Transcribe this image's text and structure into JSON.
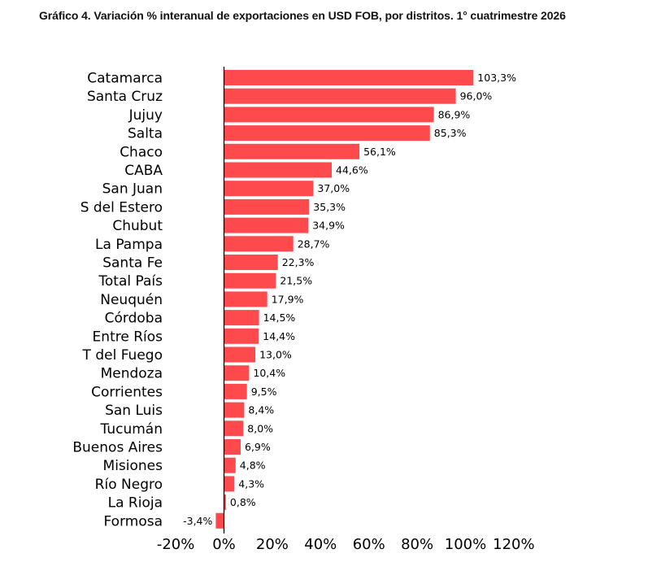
{
  "chart_data": {
    "type": "bar",
    "orientation": "horizontal",
    "title": "Gráfico 4. Variación % interanual de exportaciones en USD FOB, por distritos. 1° cuatrimestre 2026",
    "categories": [
      "Catamarca",
      "Santa Cruz",
      "Jujuy",
      "Salta",
      "Chaco",
      "CABA",
      "San Juan",
      "S del Estero",
      "Chubut",
      "La Pampa",
      "Santa Fe",
      "Total País",
      "Neuquén",
      "Córdoba",
      "Entre Ríos",
      "T del Fuego",
      "Mendoza",
      "Corrientes",
      "San Luis",
      "Tucumán",
      "Buenos Aires",
      "Misiones",
      "Río Negro",
      "La Rioja",
      "Formosa"
    ],
    "values": [
      103.3,
      96.0,
      86.9,
      85.3,
      56.1,
      44.6,
      37.0,
      35.3,
      34.9,
      28.7,
      22.3,
      21.5,
      17.9,
      14.5,
      14.4,
      13.0,
      10.4,
      9.5,
      8.4,
      8.0,
      6.9,
      4.8,
      4.3,
      0.8,
      -3.4
    ],
    "value_labels": [
      "103,3%",
      "96,0%",
      "86,9%",
      "85,3%",
      "56,1%",
      "44,6%",
      "37,0%",
      "35,3%",
      "34,9%",
      "28,7%",
      "22,3%",
      "21,5%",
      "17,9%",
      "14,5%",
      "14,4%",
      "13,0%",
      "10,4%",
      "9,5%",
      "8,4%",
      "8,0%",
      "6,9%",
      "4,8%",
      "4,3%",
      "0,8%",
      "-3,4%"
    ],
    "x_ticks": [
      -20,
      0,
      20,
      40,
      60,
      80,
      100,
      120
    ],
    "x_tick_labels": [
      "-20%",
      "0%",
      "20%",
      "40%",
      "60%",
      "80%",
      "100%",
      "120%"
    ],
    "xlim": [
      -20,
      120
    ],
    "grid": false,
    "bar_color": "#FF4A4D",
    "axis_color": "#000000"
  }
}
